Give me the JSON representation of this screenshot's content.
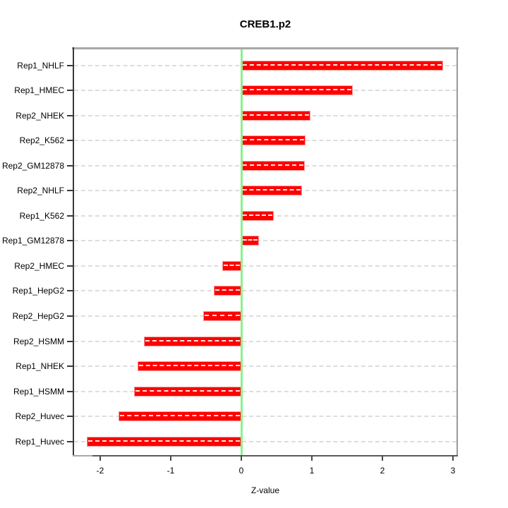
{
  "chart_data": {
    "type": "bar",
    "orientation": "horizontal",
    "title": "CREB1.p2",
    "xlabel": "Z-value",
    "categories": [
      "Rep1_NHLF",
      "Rep1_HMEC",
      "Rep2_NHEK",
      "Rep2_K562",
      "Rep2_GM12878",
      "Rep2_NHLF",
      "Rep1_K562",
      "Rep1_GM12878",
      "Rep2_HMEC",
      "Rep1_HepG2",
      "Rep2_HepG2",
      "Rep2_HSMM",
      "Rep1_NHEK",
      "Rep1_HSMM",
      "Rep2_Huvec",
      "Rep1_Huvec"
    ],
    "values": [
      2.86,
      1.58,
      0.98,
      0.91,
      0.9,
      0.86,
      0.46,
      0.25,
      -0.27,
      -0.39,
      -0.54,
      -1.38,
      -1.47,
      -1.52,
      -1.74,
      -2.19
    ],
    "x_ticks": [
      -2,
      -1,
      0,
      1,
      2,
      3
    ],
    "xlim": [
      -2.37,
      3.05
    ],
    "grid": "dashed-horizontal",
    "legend": "none",
    "bar_color": "#ff0000",
    "bar_border_color": "#ff9a9a",
    "zero_line_color": "#8df08d",
    "gridline_color": "#dddddd",
    "frame_color": "#a8a8a8"
  }
}
